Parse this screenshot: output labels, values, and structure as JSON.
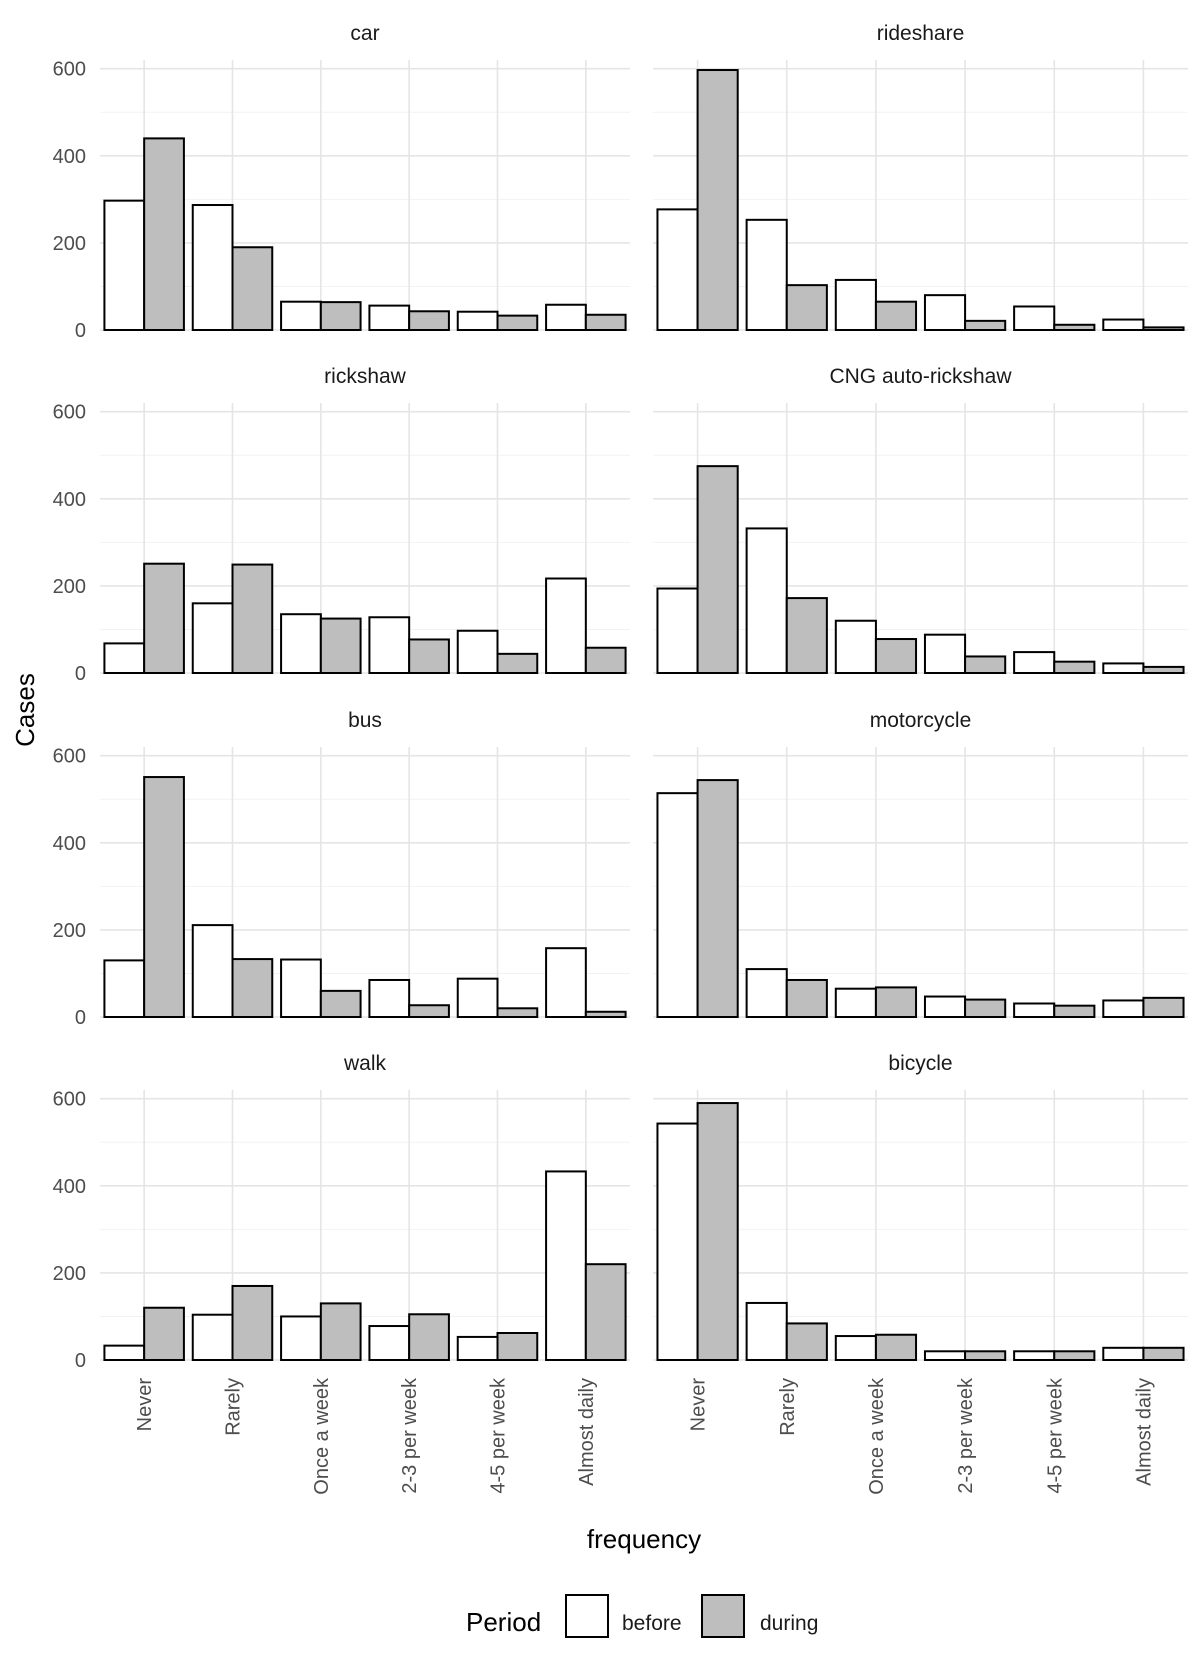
{
  "chart_data": {
    "type": "bar",
    "facet_layout": "4 rows x 2 columns",
    "x_label": "frequency",
    "y_label": "Cases",
    "categories": [
      "Never",
      "Rarely",
      "Once a week",
      "2-3 per week",
      "4-5 per week",
      "Almost daily"
    ],
    "y_ticks": [
      0,
      200,
      400,
      600
    ],
    "ylim": [
      0,
      620
    ],
    "grid": true,
    "legend": {
      "title": "Period",
      "position": "bottom",
      "entries": [
        {
          "name": "before",
          "color": "#ffffff"
        },
        {
          "name": "during",
          "color": "#bebebe"
        }
      ]
    },
    "panels": [
      {
        "title": "car",
        "before": [
          297,
          287,
          65,
          56,
          42,
          58
        ],
        "during": [
          440,
          190,
          64,
          43,
          33,
          35
        ]
      },
      {
        "title": "rideshare",
        "before": [
          277,
          253,
          115,
          80,
          54,
          24
        ],
        "during": [
          597,
          103,
          65,
          21,
          12,
          6
        ]
      },
      {
        "title": "rickshaw",
        "before": [
          68,
          160,
          135,
          128,
          97,
          217
        ],
        "during": [
          251,
          249,
          125,
          77,
          44,
          58
        ]
      },
      {
        "title": "CNG auto-rickshaw",
        "before": [
          194,
          332,
          120,
          88,
          48,
          22
        ],
        "during": [
          475,
          172,
          78,
          38,
          26,
          14
        ]
      },
      {
        "title": "bus",
        "before": [
          130,
          211,
          132,
          85,
          88,
          158
        ],
        "during": [
          551,
          133,
          60,
          27,
          20,
          12
        ]
      },
      {
        "title": "motorcycle",
        "before": [
          514,
          110,
          65,
          47,
          31,
          38
        ],
        "during": [
          544,
          85,
          68,
          40,
          26,
          44
        ]
      },
      {
        "title": "walk",
        "before": [
          33,
          104,
          100,
          78,
          53,
          433
        ],
        "during": [
          120,
          170,
          130,
          105,
          62,
          220
        ]
      },
      {
        "title": "bicycle",
        "before": [
          543,
          131,
          55,
          20,
          20,
          28
        ],
        "during": [
          590,
          84,
          58,
          20,
          20,
          28
        ]
      }
    ]
  }
}
